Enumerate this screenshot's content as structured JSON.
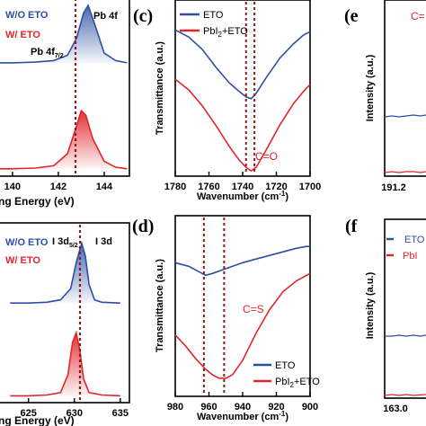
{
  "chart_data": [
    {
      "panel": "a (partial)",
      "type": "line",
      "xlabel": "ng Energy (eV)",
      "x_ticks": [
        "140",
        "142",
        "144"
      ],
      "series": [
        {
          "name": "W/O ETO",
          "color": "#2b4fa2",
          "x": [
            139.0,
            140.0,
            141.0,
            141.8,
            142.4,
            142.8,
            143.1,
            143.3,
            143.6,
            144.0,
            144.5,
            145.0
          ],
          "y": [
            0.12,
            0.12,
            0.13,
            0.15,
            0.22,
            0.45,
            0.78,
            0.88,
            0.62,
            0.25,
            0.15,
            0.12
          ]
        },
        {
          "name": "W/ ETO",
          "color": "#e0262a",
          "x": [
            139.0,
            140.0,
            141.0,
            141.8,
            142.4,
            142.8,
            143.0,
            143.2,
            143.5,
            144.0,
            144.5,
            145.0
          ],
          "y": [
            0.05,
            0.05,
            0.06,
            0.09,
            0.25,
            0.62,
            0.82,
            0.76,
            0.45,
            0.15,
            0.07,
            0.05
          ]
        }
      ],
      "annotations": [
        "Pb 4f",
        "Pb 4f",
        "7/2"
      ]
    },
    {
      "panel": "b (partial)",
      "type": "line",
      "xlabel": "ng Energy (eV)",
      "x_ticks": [
        "625",
        "630",
        "635"
      ],
      "series": [
        {
          "name": "W/O ETO",
          "color": "#2b4fa2",
          "x": [
            623,
            625,
            627,
            628.5,
            629.6,
            630.2,
            630.8,
            631.2,
            631.6,
            632.2,
            633,
            635
          ],
          "y": [
            0.12,
            0.12,
            0.13,
            0.16,
            0.3,
            0.62,
            0.86,
            0.7,
            0.35,
            0.16,
            0.13,
            0.12
          ]
        },
        {
          "name": "W/ ETO",
          "color": "#e0262a",
          "x": [
            623,
            625,
            627,
            628.5,
            629.3,
            629.8,
            630.2,
            630.6,
            631.0,
            631.6,
            633,
            635
          ],
          "y": [
            0.04,
            0.04,
            0.05,
            0.08,
            0.3,
            0.7,
            0.82,
            0.6,
            0.25,
            0.08,
            0.05,
            0.04
          ]
        }
      ],
      "annotations": [
        "I 3d",
        "I 3d",
        "5/2"
      ]
    },
    {
      "panel": "c",
      "type": "line",
      "xlabel": "Wavenumber (cm",
      "xlabel_sup": "-1",
      "xlabel_end": ")",
      "ylabel": "Transmittance (a.u.)",
      "xlim": [
        1780,
        1700
      ],
      "x_ticks": [
        1780,
        1760,
        1740,
        1720,
        1700
      ],
      "series": [
        {
          "name": "ETO",
          "color": "#2b4fa2",
          "x": [
            1780,
            1772,
            1764,
            1756,
            1748,
            1742,
            1738,
            1735,
            1732,
            1726,
            1718,
            1710,
            1704,
            1700
          ],
          "y": [
            0.83,
            0.79,
            0.72,
            0.62,
            0.53,
            0.48,
            0.45,
            0.44,
            0.47,
            0.56,
            0.67,
            0.75,
            0.8,
            0.82
          ]
        },
        {
          "name": "PbI",
          "name_sub": "2",
          "name_tail": "+ETO",
          "color": "#e0262a",
          "x": [
            1780,
            1772,
            1764,
            1756,
            1748,
            1742,
            1738,
            1735,
            1732,
            1726,
            1718,
            1710,
            1704,
            1700
          ],
          "y": [
            0.55,
            0.49,
            0.4,
            0.29,
            0.17,
            0.09,
            0.05,
            0.03,
            0.05,
            0.15,
            0.29,
            0.41,
            0.48,
            0.52
          ]
        }
      ],
      "lines_x": [
        1738,
        1733
      ],
      "annotation": "C=O",
      "panel_label": "(c)"
    },
    {
      "panel": "d",
      "type": "line",
      "xlabel": "Wavenumber (cm",
      "xlabel_sup": "-1",
      "xlabel_end": ")",
      "ylabel": "Transmittance (a.u.)",
      "xlim": [
        980,
        900
      ],
      "x_ticks": [
        980,
        960,
        940,
        920,
        900
      ],
      "series": [
        {
          "name": "ETO",
          "color": "#2b4fa2",
          "x": [
            980,
            972,
            966,
            962,
            958,
            952,
            946,
            940,
            932,
            924,
            916,
            908,
            902,
            900
          ],
          "y": [
            0.74,
            0.72,
            0.69,
            0.67,
            0.68,
            0.7,
            0.72,
            0.74,
            0.76,
            0.78,
            0.8,
            0.82,
            0.83,
            0.83
          ]
        },
        {
          "name": "PbI",
          "name_sub": "2",
          "name_tail": "+ETO",
          "color": "#e0262a",
          "x": [
            980,
            974,
            968,
            962,
            958,
            954,
            950,
            946,
            940,
            932,
            924,
            916,
            908,
            900
          ],
          "y": [
            0.34,
            0.28,
            0.21,
            0.15,
            0.12,
            0.1,
            0.1,
            0.12,
            0.2,
            0.35,
            0.48,
            0.58,
            0.64,
            0.68
          ]
        }
      ],
      "lines_x": [
        963,
        951
      ],
      "annotation": "C=S",
      "panel_label": "(d)"
    },
    {
      "panel": "e (partial)",
      "type": "line",
      "ylabel": "Intensity (a.u.)",
      "x_ticks": [
        "191.2"
      ],
      "annotation": "C=",
      "panel_label": "(e"
    },
    {
      "panel": "f (partial)",
      "type": "line",
      "ylabel": "Intensity (a.u.)",
      "x_ticks": [
        "163.0"
      ],
      "legend": [
        "ETO",
        "PbI"
      ],
      "panel_label": "(f"
    }
  ]
}
